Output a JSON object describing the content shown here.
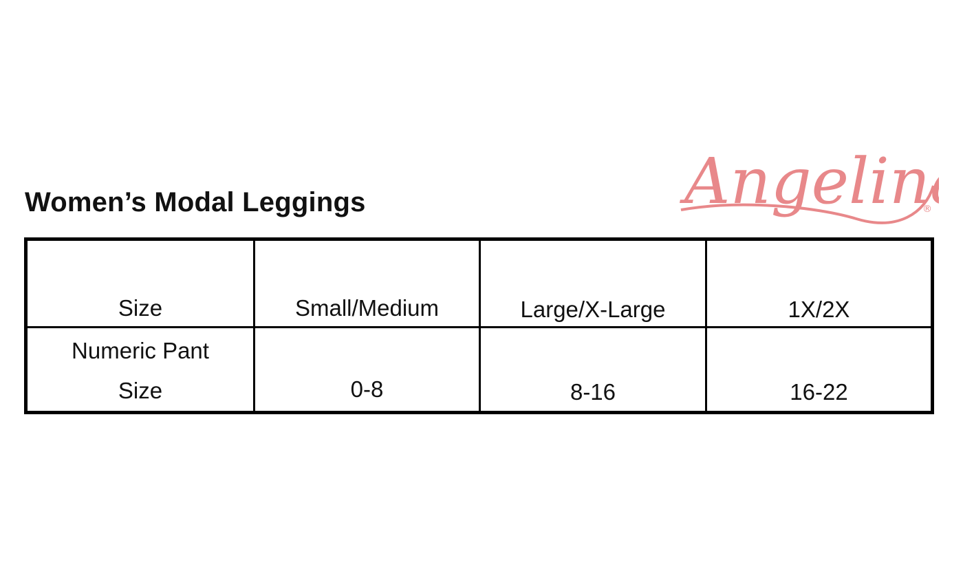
{
  "title": "Women’s Modal Leggings",
  "logo": {
    "text": "Angelina",
    "mark": "®",
    "color": "#E8888A"
  },
  "table": {
    "header": [
      "Size",
      "Small/Medium",
      "Large/X-Large",
      "1X/2X"
    ],
    "row": {
      "label_line1": "Numeric Pant",
      "label_line2": "Size",
      "values": [
        "0-8",
        "8-16",
        "16-22"
      ]
    }
  }
}
